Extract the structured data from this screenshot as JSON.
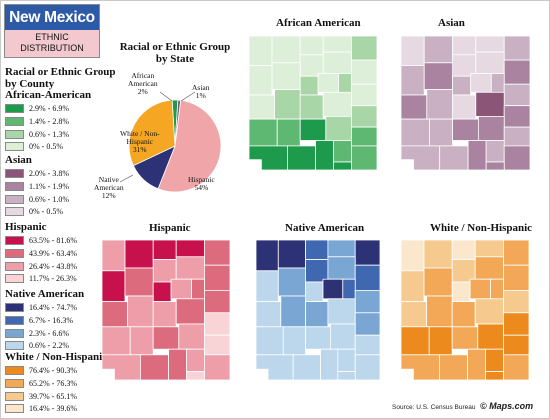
{
  "header": {
    "title": "New Mexico",
    "subtitle_line1": "ETHNIC",
    "subtitle_line2": "DISTRIBUTION"
  },
  "legend": {
    "title_line1": "Racial or Ethnic Group",
    "title_line2": "by County",
    "groups": [
      {
        "name": "African-American",
        "ranges": [
          "2.9% - 6.9%",
          "1.4% - 2.8%",
          "0.6% - 1.3%",
          "0% - 0.5%"
        ],
        "colors": [
          "#1e9a4c",
          "#5fb872",
          "#a8d6a7",
          "#ddefd8"
        ]
      },
      {
        "name": "Asian",
        "ranges": [
          "2.0% - 3.8%",
          "1.1% - 1.9%",
          "0.6% - 1.0%",
          "0% - 0.5%"
        ],
        "colors": [
          "#8a5577",
          "#a983a0",
          "#c9b0c3",
          "#e6d9e2"
        ]
      },
      {
        "name": "Hispanic",
        "ranges": [
          "63.5% - 81.6%",
          "43.9% - 63.4%",
          "26.4% - 43.8%",
          "11.7% - 26.3%"
        ],
        "colors": [
          "#c6114c",
          "#dc6b7e",
          "#ed9ea8",
          "#f9d4d6"
        ]
      },
      {
        "name": "Native American",
        "ranges": [
          "16.4% - 74.7%",
          "6.7% - 16.3%",
          "2.3% - 6.6%",
          "0.6% - 2.2%"
        ],
        "colors": [
          "#2c3275",
          "#3f68b1",
          "#7aa6d4",
          "#bcd6ec"
        ]
      },
      {
        "name": "White / Non-Hispanic",
        "ranges": [
          "76.4% - 90.3%",
          "65.2% - 76.3%",
          "39.7% - 65.1%",
          "16.4% - 39.6%"
        ],
        "colors": [
          "#ec8a1d",
          "#f2a857",
          "#f6c98f",
          "#fbe7cb"
        ]
      }
    ]
  },
  "pie": {
    "title_line1": "Racial or Ethnic Group",
    "title_line2": "by State",
    "slices": [
      {
        "name_lines": [
          "African",
          "American"
        ],
        "value": 2,
        "label": "2%",
        "color": "#1e9a4c"
      },
      {
        "name_lines": [
          "Asian"
        ],
        "value": 1,
        "label": "1%",
        "color": "#7f5a8a"
      },
      {
        "name_lines": [
          "Hispanic"
        ],
        "value": 54,
        "label": "54%",
        "color": "#f0a6a8"
      },
      {
        "name_lines": [
          "Native",
          "American"
        ],
        "value": 12,
        "label": "12%",
        "color": "#2c3275"
      },
      {
        "name_lines": [
          "White / Non-",
          "Hispanic"
        ],
        "value": 31,
        "label": "31%",
        "color": "#f5a623"
      }
    ]
  },
  "maps": {
    "african_american": "African American",
    "asian": "Asian",
    "hispanic": "Hispanic",
    "native_american": "Native American",
    "white": "White / Non-Hispanic"
  },
  "county_classes": {
    "african_american": [
      3,
      3,
      3,
      3,
      2,
      3,
      3,
      3,
      3,
      3,
      2,
      3,
      2,
      3,
      3,
      2,
      2,
      3,
      2,
      1,
      1,
      0,
      2,
      1,
      0,
      0,
      0,
      1,
      1,
      0
    ],
    "asian": [
      3,
      2,
      3,
      3,
      2,
      3,
      3,
      1,
      2,
      1,
      2,
      3,
      2,
      2,
      1,
      2,
      3,
      0,
      1,
      2,
      2,
      1,
      1,
      2,
      2,
      2,
      1,
      2,
      1,
      1
    ],
    "hispanic": [
      2,
      0,
      0,
      0,
      1,
      2,
      2,
      1,
      0,
      1,
      0,
      2,
      1,
      1,
      1,
      2,
      2,
      1,
      3,
      2,
      2,
      1,
      2,
      3,
      2,
      1,
      1,
      2,
      2,
      3
    ],
    "native_american": [
      0,
      0,
      1,
      2,
      0,
      1,
      2,
      1,
      3,
      2,
      3,
      0,
      1,
      2,
      3,
      2,
      2,
      3,
      2,
      3,
      3,
      3,
      3,
      3,
      3,
      3,
      3,
      3,
      3,
      3
    ],
    "white": [
      3,
      2,
      3,
      2,
      1,
      2,
      1,
      1,
      2,
      1,
      3,
      1,
      1,
      2,
      2,
      1,
      1,
      2,
      0,
      0,
      0,
      1,
      0,
      0,
      1,
      1,
      1,
      0,
      1,
      0
    ]
  },
  "footer": {
    "source": "Source: U.S. Census Bureau",
    "logo": "© Maps.com"
  }
}
